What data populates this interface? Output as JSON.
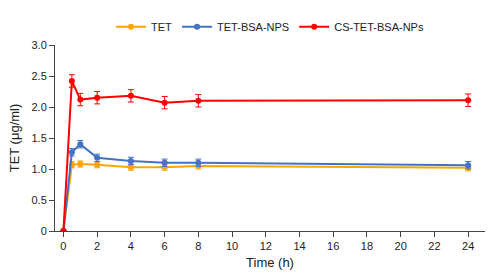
{
  "chart_data": {
    "type": "line",
    "x": [
      0,
      0.5,
      1,
      2,
      4,
      6,
      8,
      24
    ],
    "series": [
      {
        "name": "TET",
        "color": "#FFA500",
        "marker": "circle",
        "values": [
          0,
          1.07,
          1.08,
          1.07,
          1.03,
          1.03,
          1.05,
          1.02
        ],
        "errors": [
          0,
          0.05,
          0.05,
          0.05,
          0.05,
          0.05,
          0.05,
          0.05
        ]
      },
      {
        "name": "TET-BSA-NPS",
        "color": "#4472C4",
        "marker": "circle",
        "values": [
          0,
          1.27,
          1.4,
          1.18,
          1.13,
          1.1,
          1.1,
          1.06
        ],
        "errors": [
          0,
          0.06,
          0.06,
          0.06,
          0.06,
          0.06,
          0.06,
          0.06
        ]
      },
      {
        "name": "CS-TET-BSA-NPs",
        "color": "#FF0000",
        "marker": "circle",
        "values": [
          0,
          2.42,
          2.12,
          2.15,
          2.18,
          2.07,
          2.1,
          2.11
        ],
        "errors": [
          0,
          0.1,
          0.1,
          0.1,
          0.1,
          0.1,
          0.1,
          0.1
        ]
      }
    ],
    "xlabel": "Time (h)",
    "ylabel": "TET (μg/ml)",
    "xlim": [
      -0.5,
      25
    ],
    "xticks": [
      0,
      2,
      4,
      6,
      8,
      10,
      12,
      14,
      16,
      18,
      20,
      22,
      24
    ],
    "ylim": [
      0,
      3.0
    ],
    "yticks": [
      0,
      0.5,
      {
        "value": 1.0,
        "label": "1.0"
      },
      {
        "value": 1.5,
        "label": "1.5"
      },
      {
        "value": 2.0,
        "label": "2.0"
      },
      2.5,
      {
        "value": 3.0,
        "label": "3.0"
      }
    ],
    "grid": false,
    "legend": "upper center"
  }
}
